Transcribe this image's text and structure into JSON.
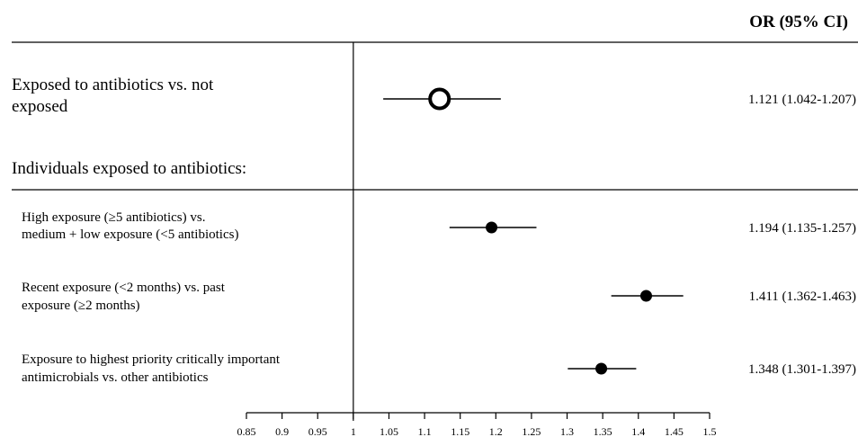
{
  "chart_data": {
    "type": "forest",
    "header": "OR (95% CI)",
    "section_label": "Individuals exposed to antibiotics:",
    "reference_value": 1,
    "xlim": [
      0.85,
      1.5
    ],
    "xticks": [
      "0.85",
      "0.9",
      "0.95",
      "1",
      "1.05",
      "1.1",
      "1.15",
      "1.2",
      "1.25",
      "1.3",
      "1.35",
      "1.4",
      "1.45",
      "1.5"
    ],
    "rows": [
      {
        "label_lines": [
          "Exposed to antibiotics vs. not",
          "exposed"
        ],
        "or": 1.121,
        "ci_low": 1.042,
        "ci_high": 1.207,
        "ci_text": "1.121 (1.042-1.207)",
        "marker": "open-circle"
      },
      {
        "label_lines": [
          "High exposure (≥5 antibiotics) vs.",
          "medium + low exposure (<5 antibiotics)"
        ],
        "or": 1.194,
        "ci_low": 1.135,
        "ci_high": 1.257,
        "ci_text": "1.194 (1.135-1.257)",
        "marker": "filled-circle"
      },
      {
        "label_lines": [
          "Recent exposure (<2 months) vs. past",
          "exposure (≥2 months)"
        ],
        "or": 1.411,
        "ci_low": 1.362,
        "ci_high": 1.463,
        "ci_text": "1.411 (1.362-1.463)",
        "marker": "filled-circle"
      },
      {
        "label_lines": [
          "Exposure to highest priority critically important",
          "antimicrobials vs. other antibiotics"
        ],
        "or": 1.348,
        "ci_low": 1.301,
        "ci_high": 1.397,
        "ci_text": "1.348 (1.301-1.397)",
        "marker": "filled-circle"
      }
    ]
  }
}
